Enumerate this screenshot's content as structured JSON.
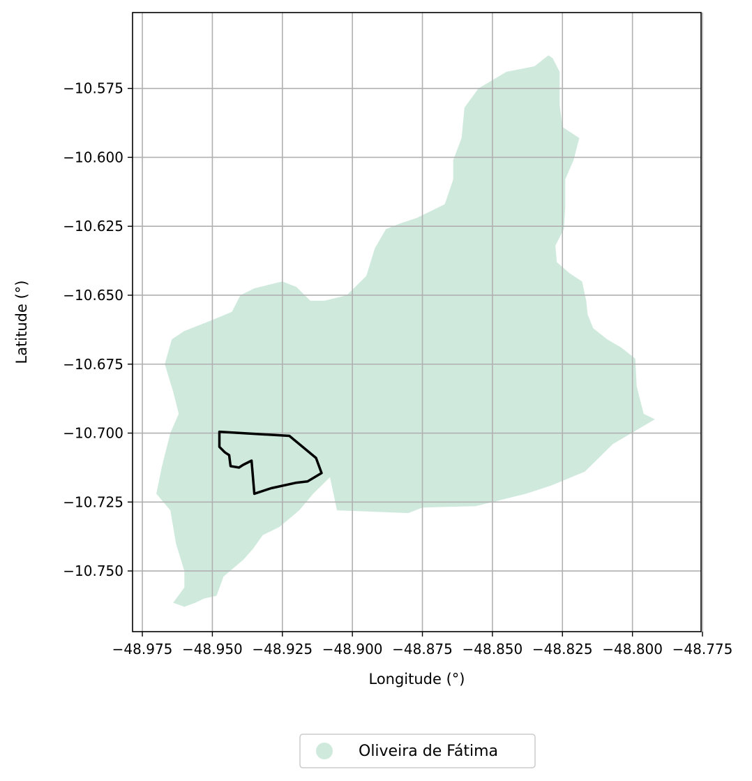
{
  "chart_data": {
    "type": "map",
    "title": "",
    "xlabel": "Longitude (°)",
    "ylabel": "Latitude (°)",
    "xlim": [
      -48.9785,
      -48.7755
    ],
    "ylim": [
      -10.772,
      -10.5475
    ],
    "grid": true,
    "x_ticks": [
      -48.975,
      -48.95,
      -48.925,
      -48.9,
      -48.875,
      -48.85,
      -48.825,
      -48.8,
      -48.775
    ],
    "y_ticks": [
      -10.575,
      -10.6,
      -10.625,
      -10.65,
      -10.675,
      -10.7,
      -10.725,
      -10.75
    ],
    "x_tick_labels": [
      "−48.975",
      "−48.950",
      "−48.925",
      "−48.900",
      "−48.875",
      "−48.850",
      "−48.825",
      "−48.800",
      "−48.775"
    ],
    "y_tick_labels": [
      "−10.575",
      "−10.600",
      "−10.625",
      "−10.650",
      "−10.675",
      "−10.700",
      "−10.725",
      "−10.750"
    ],
    "legend": {
      "placement": "bottom-center",
      "entries": [
        {
          "label": "Oliveira de Fátima",
          "color": "#cfeadd"
        }
      ]
    },
    "municipality": {
      "name": "Oliveira de Fátima",
      "fill": "#cfeadd",
      "coords": [
        [
          -48.964,
          -10.7615
        ],
        [
          -48.96,
          -10.763
        ],
        [
          -48.956,
          -10.7615
        ],
        [
          -48.953,
          -10.76
        ],
        [
          -48.9485,
          -10.759
        ],
        [
          -48.946,
          -10.752
        ],
        [
          -48.9425,
          -10.749
        ],
        [
          -48.939,
          -10.746
        ],
        [
          -48.9355,
          -10.742
        ],
        [
          -48.932,
          -10.737
        ],
        [
          -48.926,
          -10.734
        ],
        [
          -48.919,
          -10.728
        ],
        [
          -48.914,
          -10.722
        ],
        [
          -48.908,
          -10.716
        ],
        [
          -48.9055,
          -10.728
        ],
        [
          -48.88,
          -10.729
        ],
        [
          -48.875,
          -10.727
        ],
        [
          -48.856,
          -10.7265
        ],
        [
          -48.838,
          -10.722
        ],
        [
          -48.829,
          -10.719
        ],
        [
          -48.817,
          -10.714
        ],
        [
          -48.807,
          -10.704
        ],
        [
          -48.792,
          -10.695
        ],
        [
          -48.796,
          -10.693
        ],
        [
          -48.7985,
          -10.683
        ],
        [
          -48.799,
          -10.673
        ],
        [
          -48.804,
          -10.669
        ],
        [
          -48.809,
          -10.666
        ],
        [
          -48.814,
          -10.662
        ],
        [
          -48.816,
          -10.657
        ],
        [
          -48.8165,
          -10.652
        ],
        [
          -48.818,
          -10.645
        ],
        [
          -48.8225,
          -10.642
        ],
        [
          -48.827,
          -10.638
        ],
        [
          -48.8275,
          -10.632
        ],
        [
          -48.8245,
          -10.626
        ],
        [
          -48.824,
          -10.618
        ],
        [
          -48.824,
          -10.608
        ],
        [
          -48.821,
          -10.601
        ],
        [
          -48.819,
          -10.593
        ],
        [
          -48.825,
          -10.589
        ],
        [
          -48.826,
          -10.581
        ],
        [
          -48.826,
          -10.569
        ],
        [
          -48.8285,
          -10.564
        ],
        [
          -48.83,
          -10.563
        ],
        [
          -48.835,
          -10.567
        ],
        [
          -48.845,
          -10.569
        ],
        [
          -48.855,
          -10.575
        ],
        [
          -48.86,
          -10.582
        ],
        [
          -48.861,
          -10.593
        ],
        [
          -48.864,
          -10.601
        ],
        [
          -48.864,
          -10.608
        ],
        [
          -48.867,
          -10.617
        ],
        [
          -48.873,
          -10.62
        ],
        [
          -48.877,
          -10.622
        ],
        [
          -48.883,
          -10.624
        ],
        [
          -48.888,
          -10.626
        ],
        [
          -48.892,
          -10.633
        ],
        [
          -48.895,
          -10.643
        ],
        [
          -48.902,
          -10.65
        ],
        [
          -48.91,
          -10.652
        ],
        [
          -48.915,
          -10.652
        ],
        [
          -48.92,
          -10.647
        ],
        [
          -48.925,
          -10.645
        ],
        [
          -48.935,
          -10.6475
        ],
        [
          -48.94,
          -10.65
        ],
        [
          -48.943,
          -10.656
        ],
        [
          -48.95,
          -10.659
        ],
        [
          -48.96,
          -10.663
        ],
        [
          -48.9645,
          -10.666
        ],
        [
          -48.967,
          -10.675
        ],
        [
          -48.964,
          -10.685
        ],
        [
          -48.962,
          -10.693
        ],
        [
          -48.965,
          -10.7
        ],
        [
          -48.968,
          -10.712
        ],
        [
          -48.97,
          -10.722
        ],
        [
          -48.965,
          -10.728
        ],
        [
          -48.963,
          -10.74
        ],
        [
          -48.96,
          -10.75
        ],
        [
          -48.96,
          -10.756
        ],
        [
          -48.964,
          -10.7615
        ]
      ]
    },
    "outline": {
      "name": "",
      "stroke": "#000000",
      "coords": [
        [
          -48.9475,
          -10.6995
        ],
        [
          -48.9225,
          -10.701
        ],
        [
          -48.913,
          -10.709
        ],
        [
          -48.911,
          -10.7145
        ],
        [
          -48.916,
          -10.7175
        ],
        [
          -48.92,
          -10.718
        ],
        [
          -48.929,
          -10.72
        ],
        [
          -48.935,
          -10.722
        ],
        [
          -48.936,
          -10.71
        ],
        [
          -48.939,
          -10.7115
        ],
        [
          -48.9405,
          -10.7125
        ],
        [
          -48.9435,
          -10.712
        ],
        [
          -48.944,
          -10.708
        ],
        [
          -48.9455,
          -10.707
        ],
        [
          -48.9475,
          -10.705
        ],
        [
          -48.9475,
          -10.6995
        ]
      ]
    }
  }
}
